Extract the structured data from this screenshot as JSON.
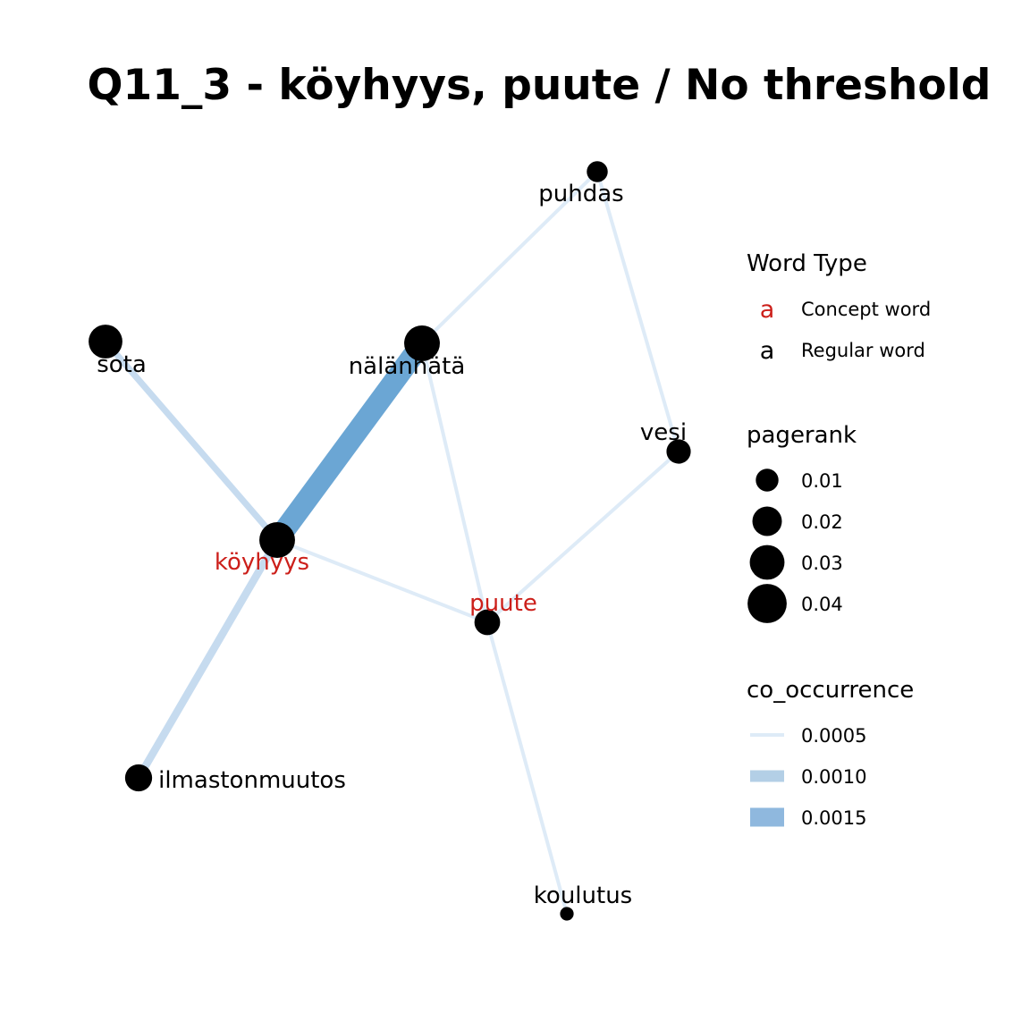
{
  "title": "Q11_3 - köyhyys, puute / No threshold",
  "colors": {
    "concept": "#cc1f1a",
    "regular": "#000000",
    "edge_light": "#deebf7",
    "edge_mid": "#c6dbef",
    "edge_dark": "#6ba6d4"
  },
  "chart_data": {
    "type": "network",
    "nodes": [
      {
        "id": "puhdas",
        "label": "puhdas",
        "type": "regular",
        "pagerank": 0.008
      },
      {
        "id": "sota",
        "label": "sota",
        "type": "regular",
        "pagerank": 0.028
      },
      {
        "id": "nalannata",
        "label": "nälänhätä",
        "type": "regular",
        "pagerank": 0.032
      },
      {
        "id": "vesi",
        "label": "vesi",
        "type": "regular",
        "pagerank": 0.012
      },
      {
        "id": "koyhyys",
        "label": "köyhyys",
        "type": "concept",
        "pagerank": 0.032
      },
      {
        "id": "puute",
        "label": "puute",
        "type": "concept",
        "pagerank": 0.014
      },
      {
        "id": "ilmastonmuutos",
        "label": "ilmastonmuutos",
        "type": "regular",
        "pagerank": 0.016
      },
      {
        "id": "koulutus",
        "label": "koulutus",
        "type": "regular",
        "pagerank": 0.002
      }
    ],
    "edges": [
      {
        "source": "puhdas",
        "target": "nalannata",
        "co_occurrence": 0.0005
      },
      {
        "source": "puhdas",
        "target": "vesi",
        "co_occurrence": 0.0005
      },
      {
        "source": "sota",
        "target": "koyhyys",
        "co_occurrence": 0.0007
      },
      {
        "source": "nalannata",
        "target": "koyhyys",
        "co_occurrence": 0.0018
      },
      {
        "source": "nalannata",
        "target": "puute",
        "co_occurrence": 0.0005
      },
      {
        "source": "vesi",
        "target": "puute",
        "co_occurrence": 0.0005
      },
      {
        "source": "koyhyys",
        "target": "puute",
        "co_occurrence": 0.0005
      },
      {
        "source": "koyhyys",
        "target": "ilmastonmuutos",
        "co_occurrence": 0.0008
      },
      {
        "source": "puute",
        "target": "koulutus",
        "co_occurrence": 0.0005
      }
    ],
    "legend": {
      "word_type": {
        "title": "Word Type",
        "key_glyph": "a",
        "items": [
          {
            "label": "Concept word",
            "type": "concept"
          },
          {
            "label": "Regular word",
            "type": "regular"
          }
        ]
      },
      "pagerank": {
        "title": "pagerank",
        "items": [
          {
            "label": "0.01",
            "value": 0.01
          },
          {
            "label": "0.02",
            "value": 0.02
          },
          {
            "label": "0.03",
            "value": 0.03
          },
          {
            "label": "0.04",
            "value": 0.04
          }
        ]
      },
      "co_occurrence": {
        "title": "co_occurrence",
        "items": [
          {
            "label": "0.0005",
            "value": 0.0005
          },
          {
            "label": "0.0010",
            "value": 0.001
          },
          {
            "label": "0.0015",
            "value": 0.0015
          }
        ]
      }
    }
  }
}
